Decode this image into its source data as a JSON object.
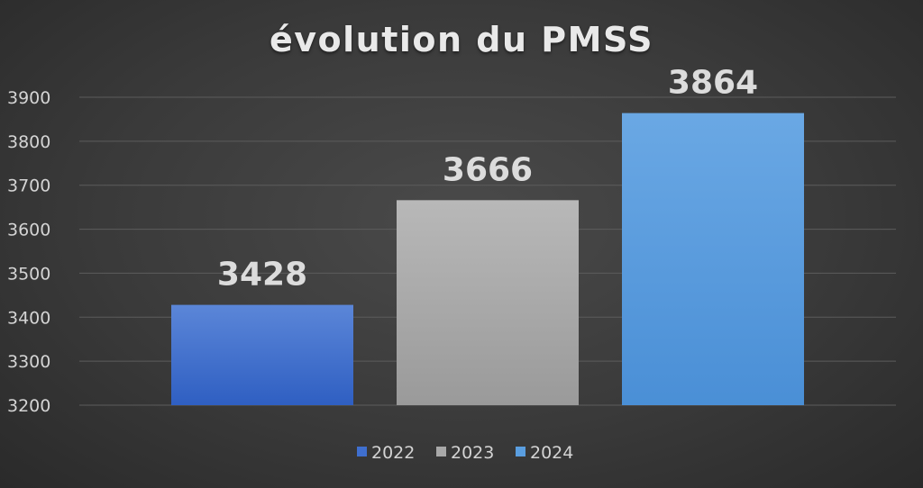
{
  "chart_data": {
    "type": "bar",
    "title": "évolution du PMSS",
    "categories": [
      "2022",
      "2023",
      "2024"
    ],
    "values": [
      3428,
      3666,
      3864
    ],
    "data_labels": [
      "3428",
      "3666",
      "3864"
    ],
    "ylim": [
      3200,
      3900
    ],
    "yticks": [
      3200,
      3300,
      3400,
      3500,
      3600,
      3700,
      3800,
      3900
    ],
    "xlabel": "",
    "ylabel": "",
    "grid": true,
    "legend_position": "bottom",
    "legend": [
      "2022",
      "2023",
      "2024"
    ],
    "colors": [
      "#3f6fcf",
      "#a8a8a8",
      "#5a9ee0"
    ]
  }
}
